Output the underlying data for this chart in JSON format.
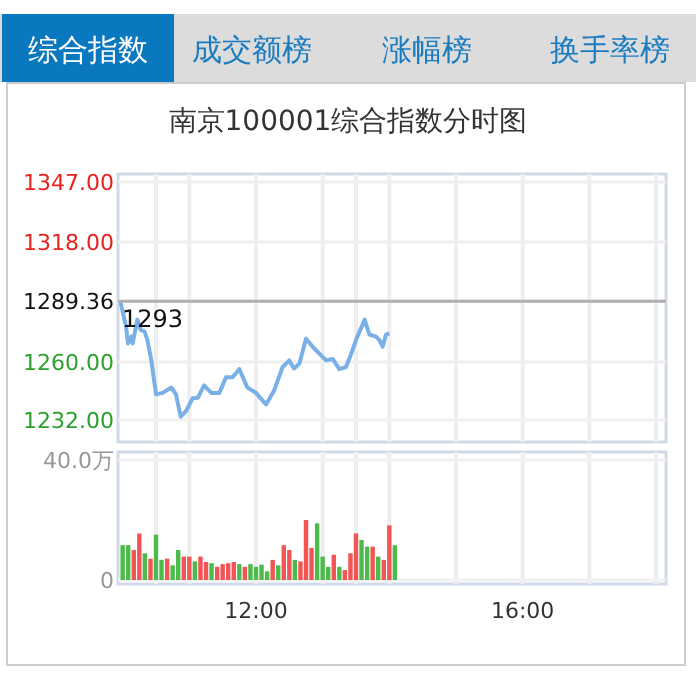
{
  "chart_data": [
    {
      "type": "line",
      "title": "南京100001综合指数分时图",
      "annotations": [
        "综合指数",
        "成交额榜",
        "涨幅榜",
        "换手率榜",
        "1293"
      ],
      "xlim": [
        9.93,
        18.15
      ],
      "xticks": [
        {
          "value": 10.5,
          "label": null
        },
        {
          "value": 11,
          "label": null
        },
        {
          "value": 12,
          "label": null
        },
        {
          "value": 13,
          "label": null
        },
        {
          "value": 13.5,
          "label": null
        },
        {
          "value": 14,
          "label": null
        },
        {
          "value": 15,
          "label": null
        },
        {
          "value": 16,
          "label": null
        },
        {
          "value": 17,
          "label": null
        },
        {
          "value": 18,
          "label": null
        }
      ],
      "ylim": [
        1232,
        1347
      ],
      "yticks": [
        {
          "value": 1232,
          "label": "1232.00"
        },
        {
          "value": 1260,
          "label": "1260.00"
        },
        {
          "value": 1289.36,
          "label": "1289.36"
        },
        {
          "value": 1318,
          "label": "1318.00"
        },
        {
          "value": 1347,
          "label": "1347.00"
        }
      ],
      "ref_lines": [
        {
          "axis": "y",
          "value": 1289.36,
          "color": "#b0b0b0"
        }
      ],
      "grid": true,
      "tick_labels": "y",
      "color": "#7ab0e8",
      "x": [
        9.97,
        10.05,
        10.08,
        10.13,
        10.15,
        10.22,
        10.27,
        10.33,
        10.37,
        10.43,
        10.5,
        10.6,
        10.73,
        10.8,
        10.87,
        10.95,
        11.05,
        11.13,
        11.22,
        11.33,
        11.45,
        11.55,
        11.65,
        11.75,
        11.87,
        12.0,
        12.15,
        12.27,
        12.4,
        12.5,
        12.57,
        12.65,
        12.75,
        12.85,
        12.95,
        13.05,
        13.15,
        13.25,
        13.35,
        13.43,
        13.5,
        13.63,
        13.7,
        13.8,
        13.85,
        13.9,
        13.95,
        14.0
      ],
      "values": [
        1288.7,
        1277.2,
        1269.0,
        1272.3,
        1269.0,
        1280.5,
        1275.6,
        1274.6,
        1270.7,
        1260.8,
        1244.4,
        1245.1,
        1247.7,
        1244.4,
        1233.6,
        1236.3,
        1242.5,
        1242.8,
        1248.7,
        1245.1,
        1245.1,
        1252.6,
        1252.6,
        1256.6,
        1247.7,
        1245.1,
        1239.5,
        1246.1,
        1257.6,
        1260.8,
        1256.9,
        1259.2,
        1271.3,
        1267.4,
        1264.1,
        1260.8,
        1261.5,
        1256.6,
        1257.6,
        1264.1,
        1270.7,
        1280.5,
        1273.3,
        1272.3,
        1270.7,
        1267.4,
        1273.3,
        1273.9
      ]
    },
    {
      "type": "bar",
      "xlim": [
        9.93,
        18.15
      ],
      "xticks": [
        {
          "value": 10.5,
          "label": null
        },
        {
          "value": 11,
          "label": null
        },
        {
          "value": 12,
          "label": "12:00"
        },
        {
          "value": 13,
          "label": null
        },
        {
          "value": 13.5,
          "label": null
        },
        {
          "value": 14,
          "label": null
        },
        {
          "value": 15,
          "label": null
        },
        {
          "value": 16,
          "label": "16:00"
        },
        {
          "value": 17,
          "label": null
        },
        {
          "value": 18,
          "label": null
        }
      ],
      "ylim": [
        0,
        40
      ],
      "yticks": [
        0,
        {
          "value": 40,
          "label": "40.0万"
        }
      ],
      "grid": true,
      "x": [
        10.0,
        10.083,
        10.167,
        10.25,
        10.333,
        10.417,
        10.5,
        10.583,
        10.667,
        10.75,
        10.833,
        10.917,
        11.0,
        11.083,
        11.167,
        11.25,
        11.333,
        11.417,
        11.5,
        11.583,
        11.667,
        11.75,
        11.833,
        11.917,
        12.0,
        12.083,
        12.167,
        12.25,
        12.333,
        12.417,
        12.5,
        12.583,
        12.667,
        12.75,
        12.833,
        12.917,
        13.0,
        13.083,
        13.167,
        13.25,
        13.333,
        13.417,
        13.5,
        13.583,
        13.667,
        13.75,
        13.833,
        13.917,
        14.0,
        14.083
      ],
      "values": [
        11.6,
        11.6,
        10,
        15.5,
        8.9,
        7.1,
        15.1,
        6.7,
        7.1,
        4.9,
        10,
        7.8,
        7.8,
        6.2,
        7.8,
        6,
        5.6,
        4.4,
        5.3,
        5.6,
        6,
        5.3,
        4.4,
        5.3,
        4.4,
        5.1,
        2.9,
        6.7,
        4.9,
        11.6,
        10,
        6.7,
        6.2,
        20,
        10.7,
        18.9,
        7.8,
        4.4,
        8.4,
        4.4,
        3.3,
        8.9,
        15.5,
        13.3,
        11.1,
        11.1,
        7.8,
        6.7,
        18.2,
        11.6
      ],
      "colors": [
        "#4cbb4c",
        "#4cbb4c",
        "#f25555",
        "#f25555",
        "#4cbb4c",
        "#f25555",
        "#4cbb4c",
        "#4cbb4c",
        "#f25555",
        "#4cbb4c",
        "#4cbb4c",
        "#f25555",
        "#f25555",
        "#4cbb4c",
        "#f25555",
        "#f25555",
        "#4cbb4c",
        "#f25555",
        "#f25555",
        "#f25555",
        "#f25555",
        "#4cbb4c",
        "#f25555",
        "#4cbb4c",
        "#4cbb4c",
        "#4cbb4c",
        "#4cbb4c",
        "#f25555",
        "#4cbb4c",
        "#f25555",
        "#f25555",
        "#4cbb4c",
        "#f25555",
        "#f25555",
        "#f25555",
        "#4cbb4c",
        "#4cbb4c",
        "#4cbb4c",
        "#f25555",
        "#4cbb4c",
        "#f25555",
        "#f25555",
        "#f25555",
        "#4cbb4c",
        "#4cbb4c",
        "#f25555",
        "#4cbb4c",
        "#f25555",
        "#f25555",
        "#4cbb4c"
      ]
    }
  ]
}
